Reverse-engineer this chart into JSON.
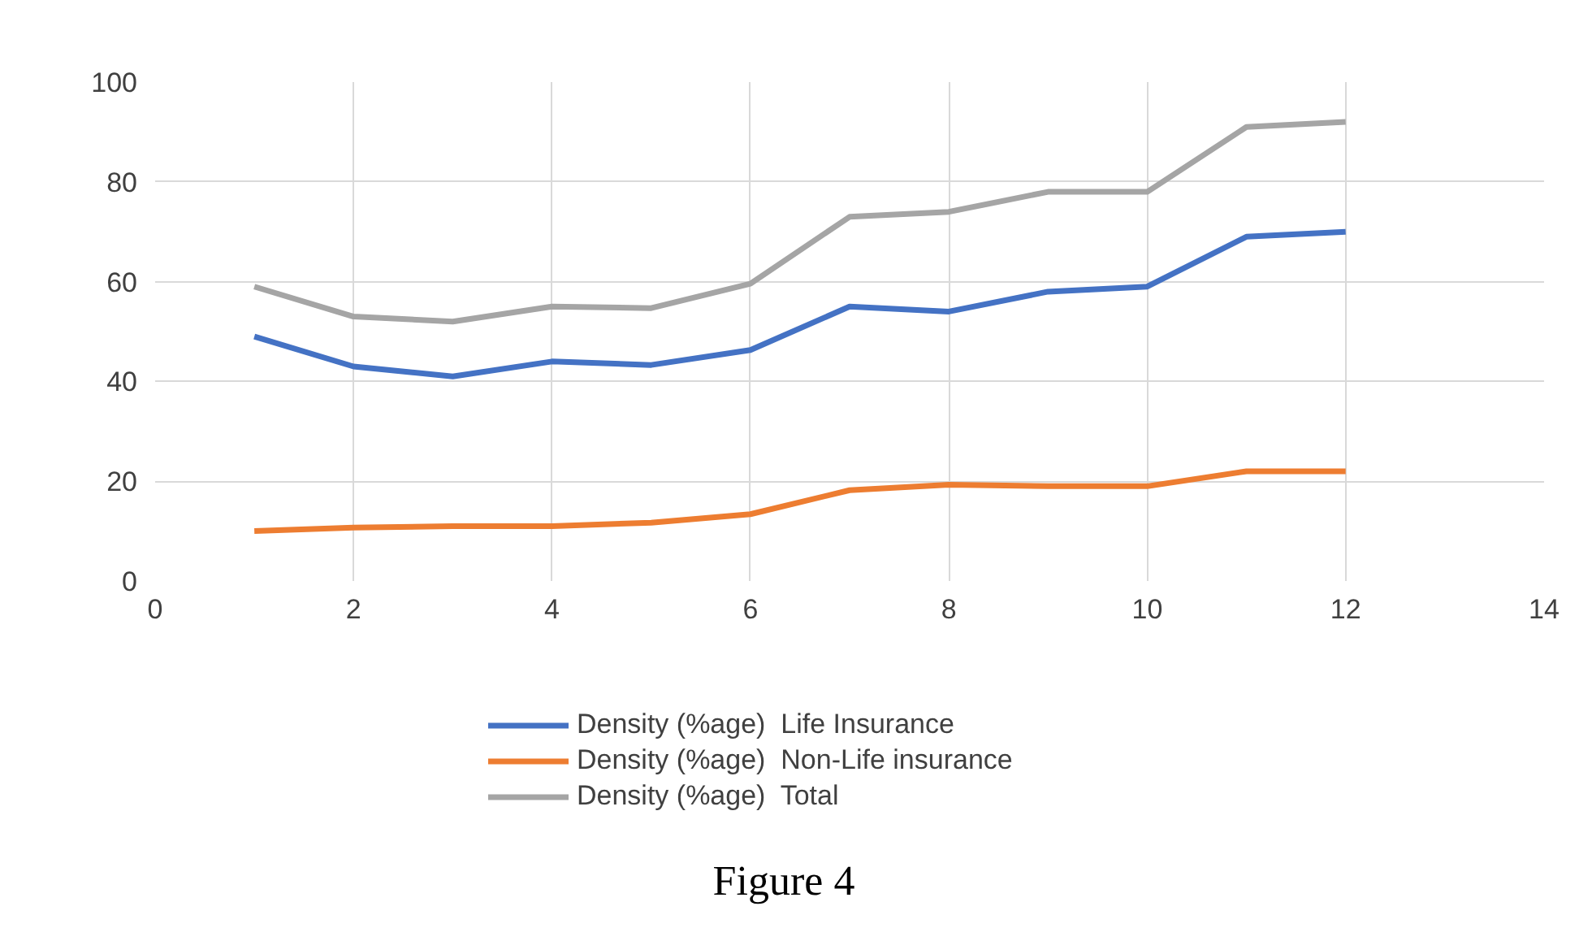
{
  "chart_data": {
    "type": "line",
    "x": [
      1,
      2,
      3,
      4,
      5,
      6,
      7,
      8,
      9,
      10,
      11,
      12
    ],
    "series": [
      {
        "name": "Density (%age)  Life Insurance",
        "color": "#4472c4",
        "values": [
          49,
          43,
          41,
          44,
          43.3,
          46.3,
          55,
          54,
          58,
          59,
          69,
          70
        ]
      },
      {
        "name": "Density (%age)  Non-Life insurance",
        "color": "#ed7d31",
        "values": [
          10,
          10.7,
          11,
          11,
          11.7,
          13.4,
          18.2,
          19.3,
          19,
          19,
          22,
          22
        ]
      },
      {
        "name": "Density (%age)  Total",
        "color": "#a5a5a5",
        "values": [
          59,
          53,
          52,
          55,
          54.7,
          59.6,
          73,
          74,
          78,
          78,
          91,
          92
        ]
      }
    ],
    "xlim": [
      0,
      14
    ],
    "xticks": [
      0,
      2,
      4,
      6,
      8,
      10,
      12,
      14
    ],
    "ylim": [
      0,
      100
    ],
    "yticks": [
      0,
      20,
      40,
      60,
      80,
      100
    ],
    "grid": true,
    "legend": "bottom",
    "marker": "none",
    "line_style": "solid",
    "annotations": [
      "Figure 4"
    ]
  }
}
